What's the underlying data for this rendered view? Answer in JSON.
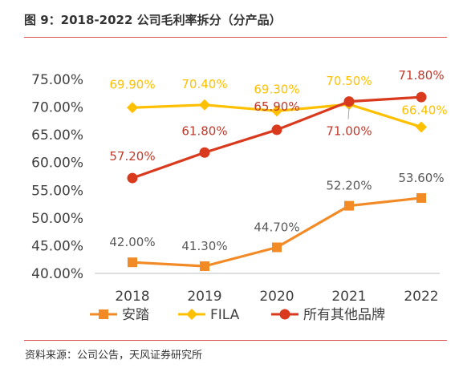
{
  "figure": {
    "title": "图 9：2018-2022 公司毛利率拆分（分产品）",
    "source": "资料来源：公司公告，天风证券研究所",
    "accent_color": "#d9534f"
  },
  "chart_data": {
    "type": "line",
    "categories": [
      "2018",
      "2019",
      "2020",
      "2021",
      "2022"
    ],
    "ylim": [
      40,
      75
    ],
    "yticks": [
      40,
      45,
      50,
      55,
      60,
      65,
      70,
      75
    ],
    "ytick_labels": [
      "40.00%",
      "45.00%",
      "50.00%",
      "55.00%",
      "60.00%",
      "65.00%",
      "70.00%",
      "75.00%"
    ],
    "grid": false,
    "legend_position": "bottom",
    "series": [
      {
        "name": "安踏",
        "color": "#f28a26",
        "label_color": "#595959",
        "marker": "square",
        "values": [
          42.0,
          41.3,
          44.7,
          52.2,
          53.6
        ],
        "labels": [
          "42.00%",
          "41.30%",
          "44.70%",
          "52.20%",
          "53.60%"
        ]
      },
      {
        "name": "FILA",
        "color": "#ffc000",
        "label_color": "#ffc000",
        "marker": "diamond",
        "values": [
          69.9,
          70.4,
          69.3,
          70.5,
          66.4
        ],
        "labels": [
          "69.90%",
          "70.40%",
          "69.30%",
          "70.50%",
          "66.40%"
        ]
      },
      {
        "name": "所有其他品牌",
        "color": "#d93a1e",
        "label_color": "#c0392b",
        "marker": "circle",
        "values": [
          57.2,
          61.8,
          65.9,
          71.0,
          71.8
        ],
        "labels": [
          "57.20%",
          "61.80%",
          "65.90%",
          "71.00%",
          "71.80%"
        ]
      }
    ]
  }
}
